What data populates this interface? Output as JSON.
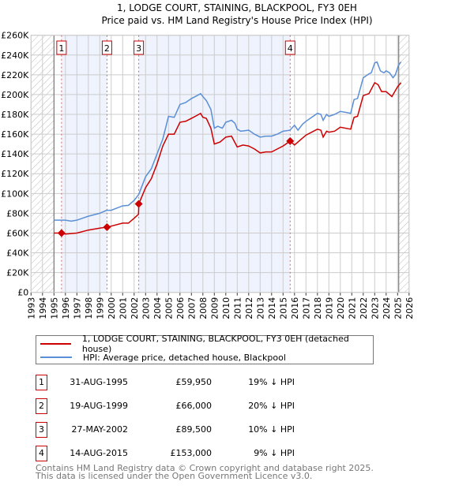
{
  "title": "1, LODGE COURT, STAINING, BLACKPOOL, FY3 0EH",
  "subtitle": "Price paid vs. HM Land Registry's House Price Index (HPI)",
  "chart_data": {
    "type": "line",
    "xlim": [
      1993,
      2026
    ],
    "ylim": [
      0,
      260000
    ],
    "x_ticks": [
      "1993",
      "1994",
      "1995",
      "1996",
      "1997",
      "1998",
      "1999",
      "2000",
      "2001",
      "2002",
      "2003",
      "2004",
      "2005",
      "2006",
      "2007",
      "2008",
      "2009",
      "2010",
      "2011",
      "2012",
      "2013",
      "2014",
      "2015",
      "2016",
      "2017",
      "2018",
      "2019",
      "2020",
      "2021",
      "2022",
      "2023",
      "2024",
      "2025",
      "2026"
    ],
    "y_ticks": [
      {
        "v": 0,
        "label": "£0"
      },
      {
        "v": 20000,
        "label": "£20K"
      },
      {
        "v": 40000,
        "label": "£40K"
      },
      {
        "v": 60000,
        "label": "£60K"
      },
      {
        "v": 80000,
        "label": "£80K"
      },
      {
        "v": 100000,
        "label": "£100K"
      },
      {
        "v": 120000,
        "label": "£120K"
      },
      {
        "v": 140000,
        "label": "£140K"
      },
      {
        "v": 160000,
        "label": "£160K"
      },
      {
        "v": 180000,
        "label": "£180K"
      },
      {
        "v": 200000,
        "label": "£200K"
      },
      {
        "v": 220000,
        "label": "£220K"
      },
      {
        "v": 240000,
        "label": "£240K"
      },
      {
        "v": 260000,
        "label": "£260K"
      }
    ],
    "grid": true,
    "hatched_ranges": [
      [
        1993,
        1995
      ],
      [
        2025.1,
        2026
      ]
    ],
    "shaded_ranges": [
      [
        1995.66,
        1999.63
      ],
      [
        2002.4,
        2015.62
      ]
    ],
    "series": [
      {
        "name": "1, LODGE COURT, STAINING, BLACKPOOL, FY3 0EH (detached house)",
        "color": "#cc0000",
        "points": [
          [
            1995,
            60
          ],
          [
            1995.66,
            59.95
          ],
          [
            1996,
            59
          ],
          [
            1997,
            60
          ],
          [
            1998,
            63
          ],
          [
            1999,
            65
          ],
          [
            1999.63,
            66
          ],
          [
            2000,
            67
          ],
          [
            2001,
            70
          ],
          [
            2001.5,
            70
          ],
          [
            2002,
            75
          ],
          [
            2002.38,
            79
          ],
          [
            2002.41,
            89.5
          ],
          [
            2003,
            106
          ],
          [
            2003.5,
            115
          ],
          [
            2004,
            130
          ],
          [
            2004.5,
            148
          ],
          [
            2005,
            160
          ],
          [
            2005.5,
            160
          ],
          [
            2006,
            172
          ],
          [
            2006.5,
            173
          ],
          [
            2007,
            176
          ],
          [
            2007.5,
            179
          ],
          [
            2007.8,
            181
          ],
          [
            2008,
            177
          ],
          [
            2008.3,
            176
          ],
          [
            2008.7,
            166
          ],
          [
            2009,
            150
          ],
          [
            2009.5,
            152
          ],
          [
            2010,
            157
          ],
          [
            2010.5,
            158
          ],
          [
            2011,
            147
          ],
          [
            2011.5,
            149
          ],
          [
            2012,
            148
          ],
          [
            2012.5,
            145
          ],
          [
            2013,
            141
          ],
          [
            2013.5,
            142
          ],
          [
            2014,
            142
          ],
          [
            2014.5,
            145
          ],
          [
            2015,
            148
          ],
          [
            2015.62,
            153
          ],
          [
            2016,
            149
          ],
          [
            2016.5,
            154
          ],
          [
            2017,
            159
          ],
          [
            2017.5,
            162
          ],
          [
            2018,
            165
          ],
          [
            2018.3,
            164
          ],
          [
            2018.5,
            157
          ],
          [
            2018.8,
            163
          ],
          [
            2019,
            162
          ],
          [
            2019.5,
            163
          ],
          [
            2020,
            167
          ],
          [
            2020.9,
            165
          ],
          [
            2021.2,
            177
          ],
          [
            2021.5,
            178
          ],
          [
            2022,
            199
          ],
          [
            2022.5,
            201
          ],
          [
            2023,
            212
          ],
          [
            2023.3,
            210
          ],
          [
            2023.6,
            203
          ],
          [
            2024,
            203
          ],
          [
            2024.5,
            198
          ],
          [
            2025,
            208
          ],
          [
            2025.3,
            212
          ]
        ]
      },
      {
        "name": "HPI: Average price, detached house, Blackpool",
        "color": "#5b8fd6",
        "points": [
          [
            1995,
            73
          ],
          [
            1996,
            73
          ],
          [
            1996.5,
            72
          ],
          [
            1997,
            73
          ],
          [
            1998,
            77
          ],
          [
            1999,
            80
          ],
          [
            1999.6,
            83
          ],
          [
            2000,
            83
          ],
          [
            2001,
            87.5
          ],
          [
            2001.5,
            88
          ],
          [
            2002,
            93
          ],
          [
            2002.4,
            99
          ],
          [
            2003,
            117
          ],
          [
            2003.5,
            125
          ],
          [
            2004,
            140
          ],
          [
            2004.5,
            155
          ],
          [
            2005,
            178
          ],
          [
            2005.5,
            177
          ],
          [
            2006,
            190
          ],
          [
            2006.5,
            192
          ],
          [
            2007,
            196
          ],
          [
            2007.5,
            199
          ],
          [
            2007.8,
            201
          ],
          [
            2008,
            198
          ],
          [
            2008.3,
            194
          ],
          [
            2008.7,
            185
          ],
          [
            2009,
            166
          ],
          [
            2009.3,
            168
          ],
          [
            2009.7,
            166
          ],
          [
            2010,
            172
          ],
          [
            2010.5,
            174
          ],
          [
            2010.8,
            171
          ],
          [
            2011,
            165
          ],
          [
            2011.3,
            163
          ],
          [
            2012,
            164
          ],
          [
            2012.5,
            160
          ],
          [
            2013,
            157
          ],
          [
            2013.5,
            158
          ],
          [
            2014,
            158
          ],
          [
            2014.5,
            160
          ],
          [
            2015,
            163
          ],
          [
            2015.6,
            164
          ],
          [
            2016,
            169
          ],
          [
            2016.3,
            164
          ],
          [
            2016.7,
            170
          ],
          [
            2017,
            173
          ],
          [
            2017.5,
            177
          ],
          [
            2018,
            181
          ],
          [
            2018.3,
            180
          ],
          [
            2018.5,
            174
          ],
          [
            2018.8,
            180
          ],
          [
            2019,
            178
          ],
          [
            2019.5,
            180
          ],
          [
            2020,
            183
          ],
          [
            2020.5,
            182
          ],
          [
            2020.9,
            181
          ],
          [
            2021.2,
            195
          ],
          [
            2021.5,
            196
          ],
          [
            2022,
            217
          ],
          [
            2022.5,
            221
          ],
          [
            2022.7,
            222
          ],
          [
            2023,
            232
          ],
          [
            2023.2,
            233
          ],
          [
            2023.5,
            224
          ],
          [
            2023.8,
            222
          ],
          [
            2024,
            224
          ],
          [
            2024.3,
            222
          ],
          [
            2024.6,
            217
          ],
          [
            2024.8,
            220
          ],
          [
            2025,
            227
          ],
          [
            2025.1,
            230
          ],
          [
            2025.3,
            233
          ]
        ]
      }
    ],
    "y_unit": "thousands GBP",
    "sales": [
      {
        "label": "1",
        "x": 1995.66,
        "price": 59950
      },
      {
        "label": "2",
        "x": 1999.63,
        "price": 66000
      },
      {
        "label": "3",
        "x": 2002.4,
        "price": 89500
      },
      {
        "label": "4",
        "x": 2015.62,
        "price": 153000
      }
    ]
  },
  "legend": {
    "property": "1, LODGE COURT, STAINING, BLACKPOOL, FY3 0EH (detached house)",
    "hpi": "HPI: Average price, detached house, Blackpool"
  },
  "transactions": [
    {
      "num": "1",
      "date": "31-AUG-1995",
      "price": "£59,950",
      "hpi": "19% ↓ HPI"
    },
    {
      "num": "2",
      "date": "19-AUG-1999",
      "price": "£66,000",
      "hpi": "20% ↓ HPI"
    },
    {
      "num": "3",
      "date": "27-MAY-2002",
      "price": "£89,500",
      "hpi": "10% ↓ HPI"
    },
    {
      "num": "4",
      "date": "14-AUG-2015",
      "price": "£153,000",
      "hpi": "9% ↓ HPI"
    }
  ],
  "footer": {
    "line1": "Contains HM Land Registry data © Crown copyright and database right 2025.",
    "line2": "This data is licensed under the Open Government Licence v3.0."
  }
}
